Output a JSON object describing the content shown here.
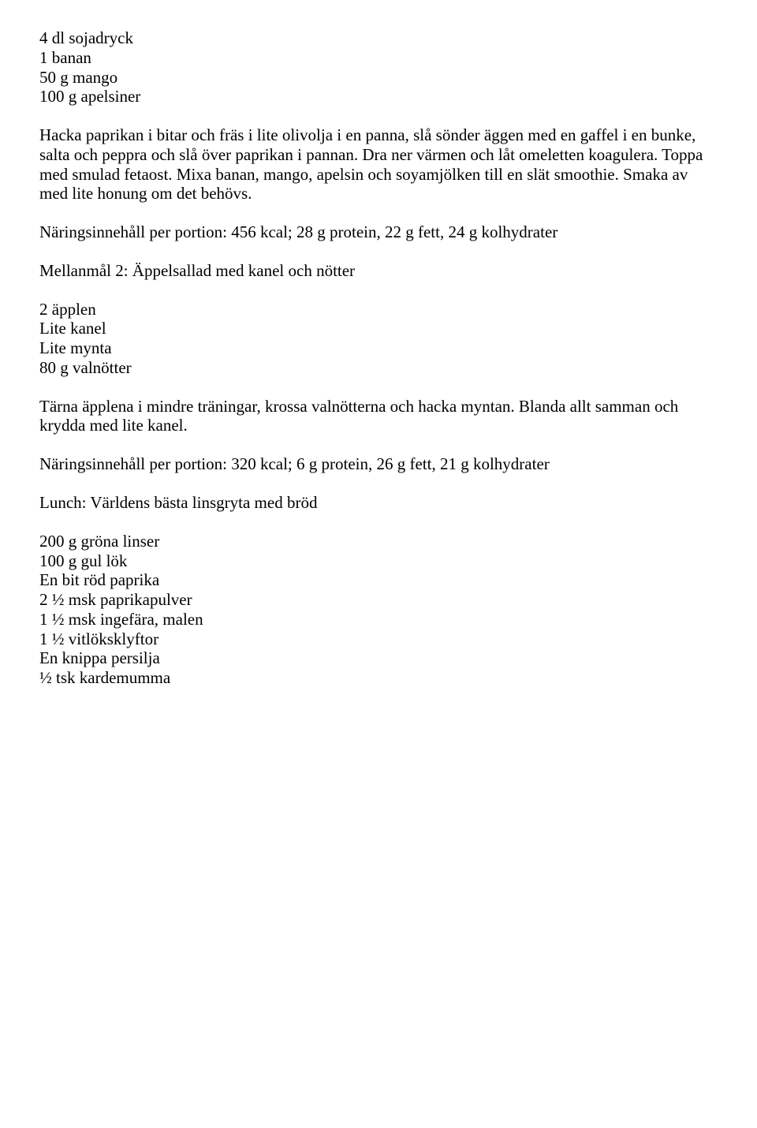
{
  "ingredients1": [
    "4 dl sojadryck",
    "1 banan",
    "50 g mango",
    "100 g apelsiner"
  ],
  "instructions1": "Hacka paprikan i bitar och fräs i lite olivolja i en panna, slå sönder äggen med en gaffel i en bunke, salta och peppra och slå över paprikan i pannan. Dra ner värmen och låt omeletten koagulera. Toppa med smulad fetaost. Mixa banan, mango, apelsin och soyamjölken till en slät smoothie. Smaka av med lite honung om det behövs.",
  "nutrition1": "Näringsinnehåll per portion: 456 kcal; 28 g protein, 22 g fett, 24 g kolhydrater",
  "heading2": "Mellanmål 2: Äppelsallad med kanel och nötter",
  "ingredients2": [
    "2 äpplen",
    "Lite kanel",
    "Lite mynta",
    "80 g valnötter"
  ],
  "instructions2": "Tärna äpplena i mindre träningar, krossa valnötterna och hacka myntan. Blanda allt samman och krydda med lite kanel.",
  "nutrition2": "Näringsinnehåll per portion: 320 kcal; 6 g protein, 26 g fett, 21 g kolhydrater",
  "heading3": "Lunch: Världens bästa linsgryta med bröd",
  "ingredients3": [
    "200 g gröna linser",
    "100 g gul lök",
    "En bit röd paprika",
    "2 ½ msk paprikapulver",
    "1 ½ msk ingefära, malen",
    "1 ½ vitlöksklyftor",
    "En knippa persilja",
    "½ tsk kardemumma"
  ]
}
